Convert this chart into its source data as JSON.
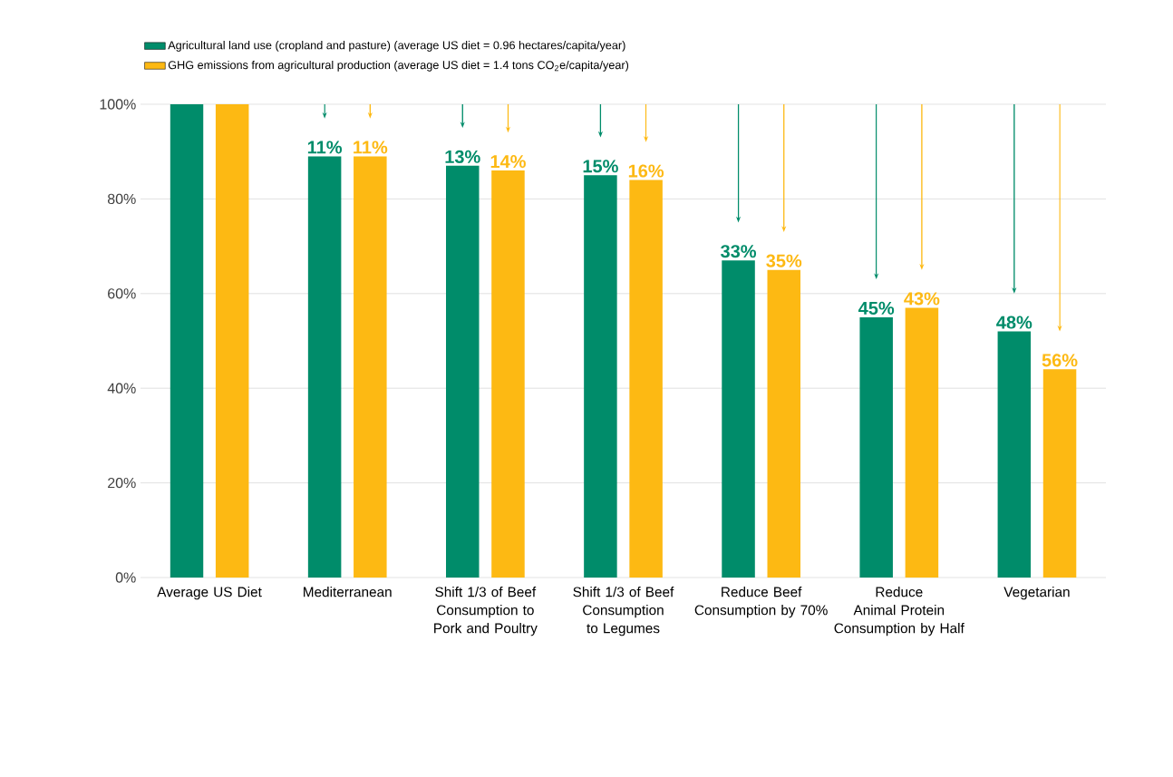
{
  "chart_data": {
    "type": "bar",
    "categories": [
      "Average US Diet",
      "Mediterranean",
      "Shift 1/3 of Beef Consumption to Pork and Poultry",
      "Shift 1/3 of Beef Consumption to Legumes",
      "Reduce Beef Consumption by 70%",
      "Reduce Animal Protein Consumption by Half",
      "Vegetarian"
    ],
    "series": [
      {
        "name": "Agricultural land use (cropland and pasture) (average US diet = 0.96 hectares/capita/year)",
        "color": "#008c6a",
        "values": [
          100,
          89,
          87,
          85,
          67,
          55,
          52
        ]
      },
      {
        "name": "GHG emissions from agricultural production (average US diet = 1.4 tons CO$_{2}$e/capita/year)",
        "color": "#fdb913",
        "values": [
          100,
          89,
          86,
          84,
          65,
          57,
          44
        ]
      }
    ],
    "annotations": [
      "11%",
      "11%",
      "13%",
      "14%",
      "15%",
      "16%",
      "33%",
      "35%",
      "45%",
      "43%",
      "48%",
      "56%"
    ],
    "ylim": [
      0,
      100
    ],
    "yticks": [
      {
        "value": 0,
        "label": "0%"
      },
      {
        "value": 20,
        "label": "20%"
      },
      {
        "value": 40,
        "label": "40%"
      },
      {
        "value": 60,
        "label": "60%"
      },
      {
        "value": 80,
        "label": "80%"
      },
      {
        "value": 100,
        "label": "100%"
      }
    ],
    "grid": "y",
    "legend": "top left"
  }
}
